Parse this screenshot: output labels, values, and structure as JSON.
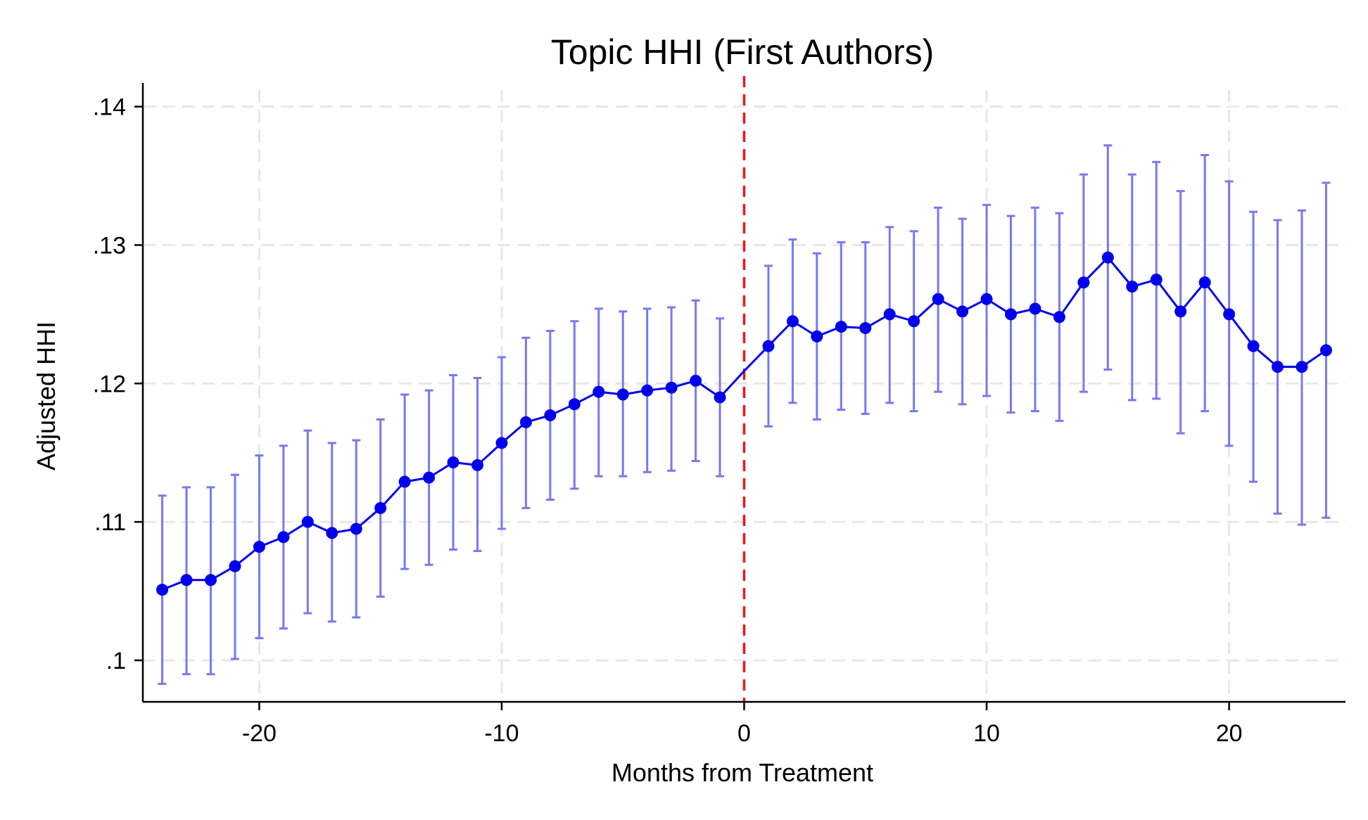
{
  "chart_data": {
    "type": "line",
    "title": "Topic HHI (First Authors)",
    "xlabel": "Months from Treatment",
    "ylabel": "Adjusted HHI",
    "xlim": [
      -24.8,
      24.8
    ],
    "ylim": [
      0.097,
      0.1412
    ],
    "xticks": [
      {
        "value": -20,
        "label": "-20"
      },
      {
        "value": -10,
        "label": "-10"
      },
      {
        "value": 0,
        "label": "0"
      },
      {
        "value": 10,
        "label": "10"
      },
      {
        "value": 20,
        "label": "20"
      }
    ],
    "yticks": [
      {
        "value": 0.1,
        "label": ".1"
      },
      {
        "value": 0.11,
        "label": ".11"
      },
      {
        "value": 0.12,
        "label": ".12"
      },
      {
        "value": 0.13,
        "label": ".13"
      },
      {
        "value": 0.14,
        "label": ".14"
      }
    ],
    "grid": true,
    "reference_line": {
      "x": 0,
      "color": "#e8191a",
      "style": "dashed"
    },
    "series": [
      {
        "color": "#0000ee",
        "ci_color": "#7878f2",
        "points": [
          {
            "x": -24,
            "y": 0.1051,
            "lo": 0.0983,
            "hi": 0.1119
          },
          {
            "x": -23,
            "y": 0.1058,
            "lo": 0.099,
            "hi": 0.1125
          },
          {
            "x": -22,
            "y": 0.1058,
            "lo": 0.099,
            "hi": 0.1125
          },
          {
            "x": -21,
            "y": 0.1068,
            "lo": 0.1001,
            "hi": 0.1134
          },
          {
            "x": -20,
            "y": 0.1082,
            "lo": 0.1016,
            "hi": 0.1148
          },
          {
            "x": -19,
            "y": 0.1089,
            "lo": 0.1023,
            "hi": 0.1155
          },
          {
            "x": -18,
            "y": 0.11,
            "lo": 0.1034,
            "hi": 0.1166
          },
          {
            "x": -17,
            "y": 0.1092,
            "lo": 0.1028,
            "hi": 0.1157
          },
          {
            "x": -16,
            "y": 0.1095,
            "lo": 0.1031,
            "hi": 0.1159
          },
          {
            "x": -15,
            "y": 0.111,
            "lo": 0.1046,
            "hi": 0.1174
          },
          {
            "x": -14,
            "y": 0.1129,
            "lo": 0.1066,
            "hi": 0.1192
          },
          {
            "x": -13,
            "y": 0.1132,
            "lo": 0.1069,
            "hi": 0.1195
          },
          {
            "x": -12,
            "y": 0.1143,
            "lo": 0.108,
            "hi": 0.1206
          },
          {
            "x": -11,
            "y": 0.1141,
            "lo": 0.1079,
            "hi": 0.1204
          },
          {
            "x": -10,
            "y": 0.1157,
            "lo": 0.1095,
            "hi": 0.1219
          },
          {
            "x": -9,
            "y": 0.1172,
            "lo": 0.111,
            "hi": 0.1233
          },
          {
            "x": -8,
            "y": 0.1177,
            "lo": 0.1116,
            "hi": 0.1238
          },
          {
            "x": -7,
            "y": 0.1185,
            "lo": 0.1124,
            "hi": 0.1245
          },
          {
            "x": -6,
            "y": 0.1194,
            "lo": 0.1133,
            "hi": 0.1254
          },
          {
            "x": -5,
            "y": 0.1192,
            "lo": 0.1133,
            "hi": 0.1252
          },
          {
            "x": -4,
            "y": 0.1195,
            "lo": 0.1136,
            "hi": 0.1254
          },
          {
            "x": -3,
            "y": 0.1197,
            "lo": 0.1137,
            "hi": 0.1255
          },
          {
            "x": -2,
            "y": 0.1202,
            "lo": 0.1144,
            "hi": 0.126
          },
          {
            "x": -1,
            "y": 0.119,
            "lo": 0.1133,
            "hi": 0.1247
          },
          {
            "x": 0,
            "y": 0.1209,
            "lo": null,
            "hi": null
          },
          {
            "x": 1,
            "y": 0.1227,
            "lo": 0.1169,
            "hi": 0.1285
          },
          {
            "x": 2,
            "y": 0.1245,
            "lo": 0.1186,
            "hi": 0.1304
          },
          {
            "x": 3,
            "y": 0.1234,
            "lo": 0.1174,
            "hi": 0.1294
          },
          {
            "x": 4,
            "y": 0.1241,
            "lo": 0.1181,
            "hi": 0.1302
          },
          {
            "x": 5,
            "y": 0.124,
            "lo": 0.1178,
            "hi": 0.1302
          },
          {
            "x": 6,
            "y": 0.125,
            "lo": 0.1186,
            "hi": 0.1313
          },
          {
            "x": 7,
            "y": 0.1245,
            "lo": 0.118,
            "hi": 0.131
          },
          {
            "x": 8,
            "y": 0.1261,
            "lo": 0.1194,
            "hi": 0.1327
          },
          {
            "x": 9,
            "y": 0.1252,
            "lo": 0.1185,
            "hi": 0.1319
          },
          {
            "x": 10,
            "y": 0.1261,
            "lo": 0.1191,
            "hi": 0.1329
          },
          {
            "x": 11,
            "y": 0.125,
            "lo": 0.1179,
            "hi": 0.1321
          },
          {
            "x": 12,
            "y": 0.1254,
            "lo": 0.118,
            "hi": 0.1327
          },
          {
            "x": 13,
            "y": 0.1248,
            "lo": 0.1173,
            "hi": 0.1323
          },
          {
            "x": 14,
            "y": 0.1273,
            "lo": 0.1194,
            "hi": 0.1351
          },
          {
            "x": 15,
            "y": 0.1291,
            "lo": 0.121,
            "hi": 0.1372
          },
          {
            "x": 16,
            "y": 0.127,
            "lo": 0.1188,
            "hi": 0.1351
          },
          {
            "x": 17,
            "y": 0.1275,
            "lo": 0.1189,
            "hi": 0.136
          },
          {
            "x": 18,
            "y": 0.1252,
            "lo": 0.1164,
            "hi": 0.1339
          },
          {
            "x": 19,
            "y": 0.1273,
            "lo": 0.118,
            "hi": 0.1365
          },
          {
            "x": 20,
            "y": 0.125,
            "lo": 0.1155,
            "hi": 0.1346
          },
          {
            "x": 21,
            "y": 0.1227,
            "lo": 0.1129,
            "hi": 0.1324
          },
          {
            "x": 22,
            "y": 0.1212,
            "lo": 0.1106,
            "hi": 0.1318
          },
          {
            "x": 23,
            "y": 0.1212,
            "lo": 0.1098,
            "hi": 0.1325
          },
          {
            "x": 24,
            "y": 0.1224,
            "lo": 0.1103,
            "hi": 0.1345
          }
        ]
      }
    ]
  }
}
